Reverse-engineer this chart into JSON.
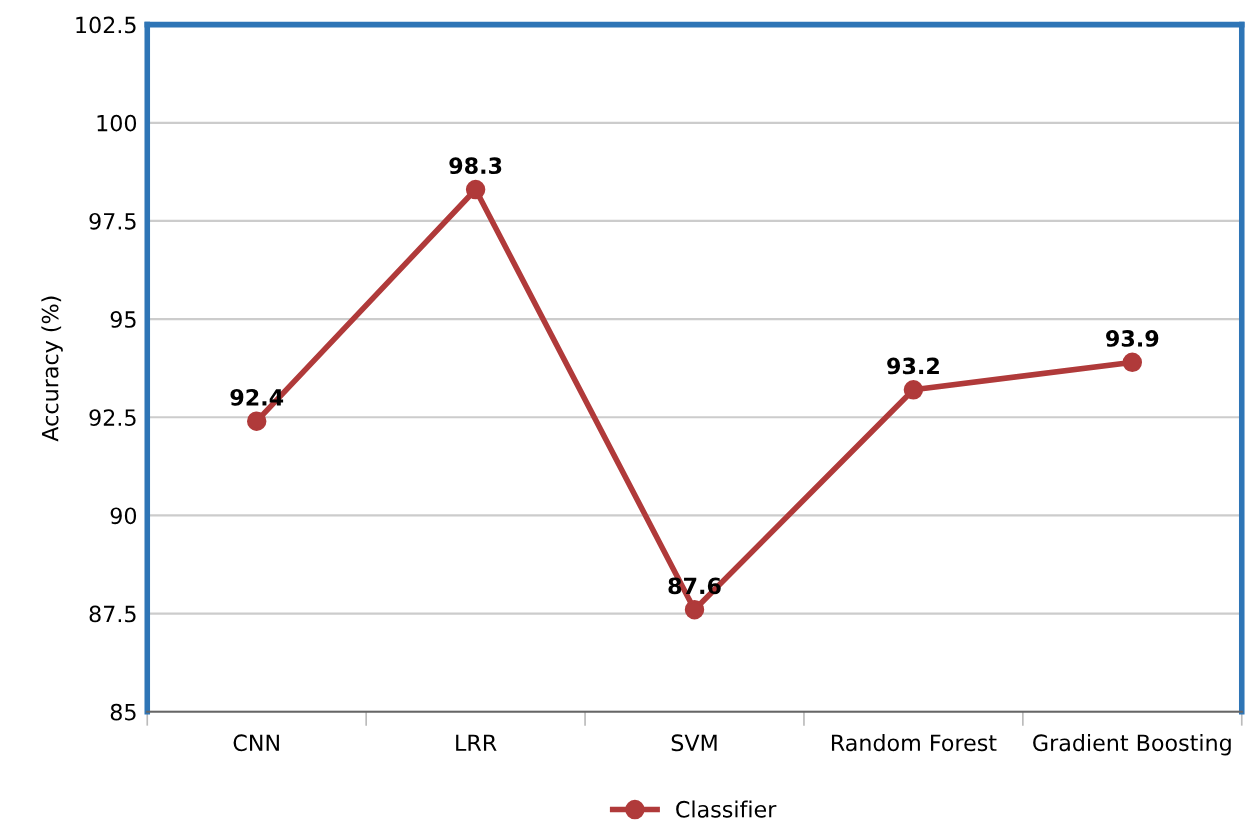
{
  "chart_data": {
    "type": "line",
    "ylabel": "Accuracy (%)",
    "categories": [
      "CNN",
      "LRR",
      "SVM",
      "Random Forest",
      "Gradient Boosting"
    ],
    "series": [
      {
        "name": "Classifier",
        "color": "#b03a3a",
        "values": [
          92.4,
          98.3,
          87.6,
          93.2,
          93.9
        ]
      }
    ],
    "ylim": [
      85,
      102.5
    ],
    "yticks": [
      85,
      87.5,
      90,
      92.5,
      95,
      97.5,
      100,
      102.5
    ],
    "grid": "y",
    "legend": "bottom",
    "marker": "circle",
    "line_style": "solid",
    "data_labels": true
  }
}
